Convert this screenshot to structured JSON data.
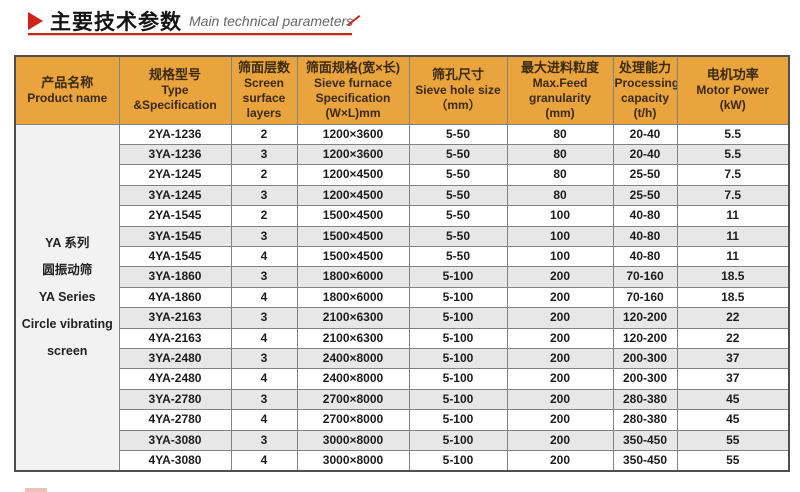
{
  "page": {
    "title_zh": "主要技术参数",
    "title_en": "Main technical parameters"
  },
  "colors": {
    "accent_red": "#cf2318",
    "header_orange": "#e9a43e",
    "header_text": "#3a2a10",
    "row_stripe": "#e7e7e7",
    "product_cell_bg": "#f2f2f2",
    "body_text": "#1c1c1c"
  },
  "table": {
    "product_lines": "YA 系列\n圆振动筛\nYA Series\nCircle vibrating\nscreen",
    "columns": [
      {
        "zh": "产品名称",
        "en": "Product name"
      },
      {
        "zh": "规格型号",
        "en": "Type &Specification"
      },
      {
        "zh": "筛面层数",
        "en": "Screen\nsurface\nlayers"
      },
      {
        "zh": "筛面规格(宽×长)",
        "en": "Sieve furnace\nSpecification\n(W×L)mm"
      },
      {
        "zh": "筛孔尺寸",
        "en": "Sieve hole size\n（mm）"
      },
      {
        "zh": "最大进料粒度",
        "en": "Max.Feed\ngranularity\n(mm)"
      },
      {
        "zh": "处理能力",
        "en": "Processing\ncapacity\n(t/h)"
      },
      {
        "zh": "电机功率",
        "en": "Motor Power\n(kW)"
      }
    ],
    "rows": [
      [
        "2YA-1236",
        "2",
        "1200×3600",
        "5-50",
        "80",
        "20-40",
        "5.5"
      ],
      [
        "3YA-1236",
        "3",
        "1200×3600",
        "5-50",
        "80",
        "20-40",
        "5.5"
      ],
      [
        "2YA-1245",
        "2",
        "1200×4500",
        "5-50",
        "80",
        "25-50",
        "7.5"
      ],
      [
        "3YA-1245",
        "3",
        "1200×4500",
        "5-50",
        "80",
        "25-50",
        "7.5"
      ],
      [
        "2YA-1545",
        "2",
        "1500×4500",
        "5-50",
        "100",
        "40-80",
        "11"
      ],
      [
        "3YA-1545",
        "3",
        "1500×4500",
        "5-50",
        "100",
        "40-80",
        "11"
      ],
      [
        "4YA-1545",
        "4",
        "1500×4500",
        "5-50",
        "100",
        "40-80",
        "11"
      ],
      [
        "3YA-1860",
        "3",
        "1800×6000",
        "5-100",
        "200",
        "70-160",
        "18.5"
      ],
      [
        "4YA-1860",
        "4",
        "1800×6000",
        "5-100",
        "200",
        "70-160",
        "18.5"
      ],
      [
        "3YA-2163",
        "3",
        "2100×6300",
        "5-100",
        "200",
        "120-200",
        "22"
      ],
      [
        "4YA-2163",
        "4",
        "2100×6300",
        "5-100",
        "200",
        "120-200",
        "22"
      ],
      [
        "3YA-2480",
        "3",
        "2400×8000",
        "5-100",
        "200",
        "200-300",
        "37"
      ],
      [
        "4YA-2480",
        "4",
        "2400×8000",
        "5-100",
        "200",
        "200-300",
        "37"
      ],
      [
        "3YA-2780",
        "3",
        "2700×8000",
        "5-100",
        "200",
        "280-380",
        "45"
      ],
      [
        "4YA-2780",
        "4",
        "2700×8000",
        "5-100",
        "200",
        "280-380",
        "45"
      ],
      [
        "3YA-3080",
        "3",
        "3000×8000",
        "5-100",
        "200",
        "350-450",
        "55"
      ],
      [
        "4YA-3080",
        "4",
        "3000×8000",
        "5-100",
        "200",
        "350-450",
        "55"
      ]
    ]
  }
}
